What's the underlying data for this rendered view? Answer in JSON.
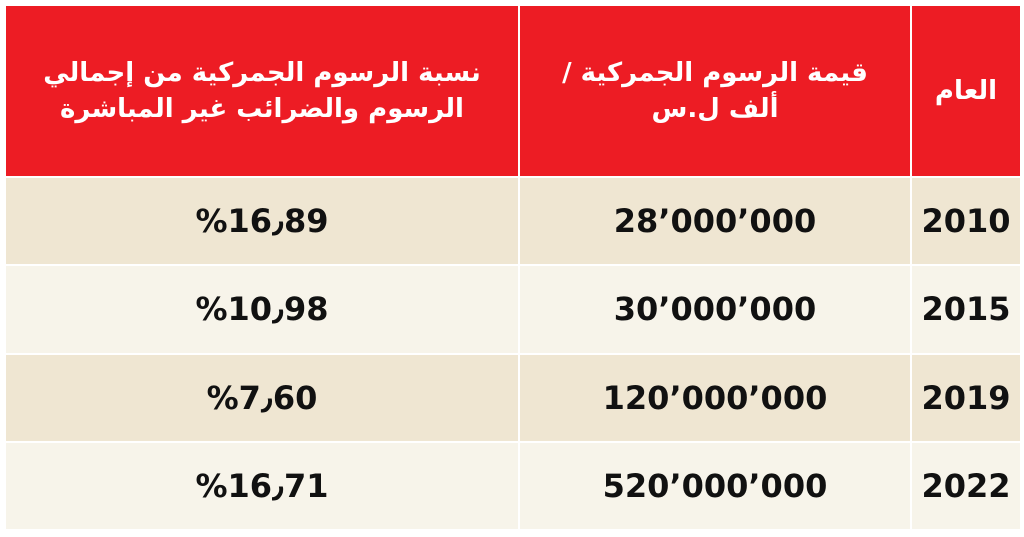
{
  "table": {
    "header": [
      [
        "العام"
      ],
      [
        "قيمة الرسوم الجمركية /",
        "ألف ل.س"
      ],
      [
        "نسبة الرسوم الجمركية من إجمالي",
        "الرسوم والضرائب غير المباشرة"
      ]
    ],
    "rows": [
      [
        "2010",
        "28٬000٬000",
        "%16٫89"
      ],
      [
        "2015",
        "30٬000٬000",
        "%10٫98"
      ],
      [
        "2019",
        "120٬000٬000",
        "%7٫60"
      ],
      [
        "2022",
        "520٬000٬000",
        "%16٫71"
      ]
    ]
  }
}
